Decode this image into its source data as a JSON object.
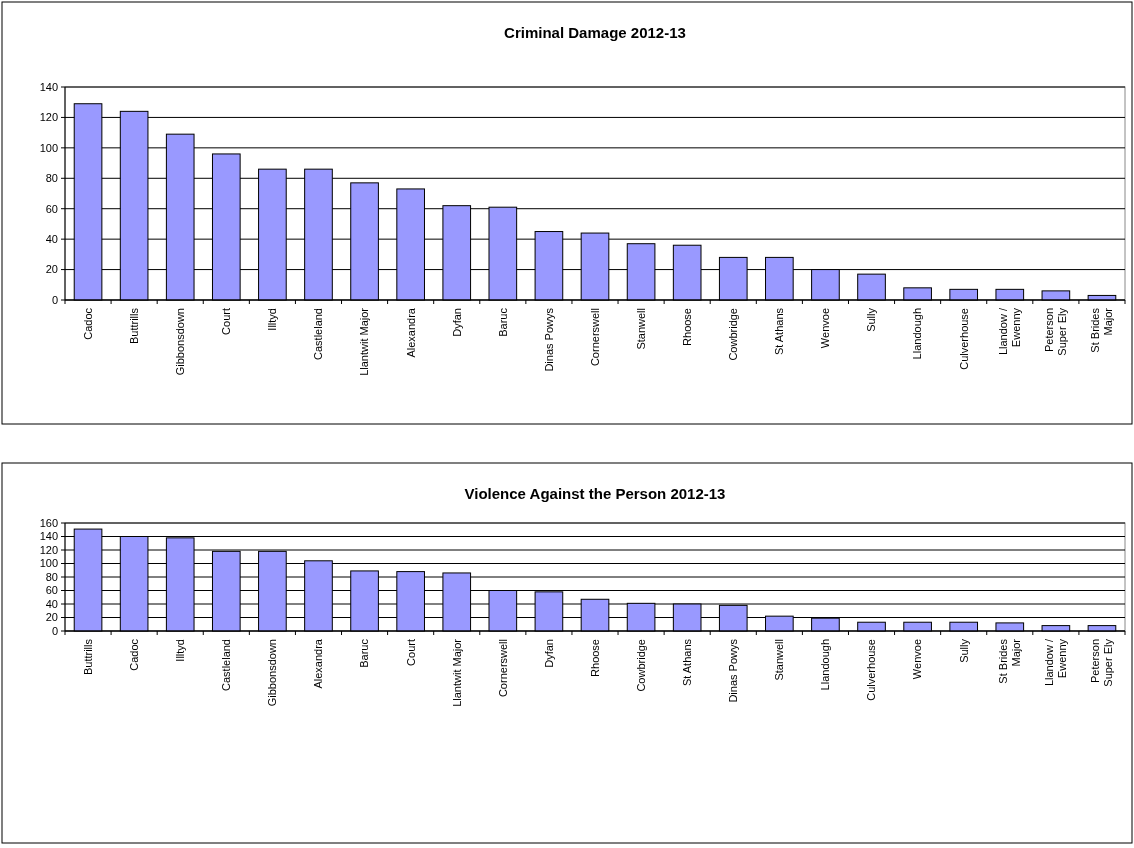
{
  "chart_data": [
    {
      "type": "bar",
      "title": "Criminal Damage 2012-13",
      "categories": [
        "Cadoc",
        "Buttrills",
        "Gibbonsdown",
        "Court",
        "Illtyd",
        "Castleland",
        "Llantwit Major",
        "Alexandra",
        "Dyfan",
        "Baruc",
        "Dinas Powys",
        "Cornerswell",
        "Stanwell",
        "Rhoose",
        "Cowbridge",
        "St Athans",
        "Wenvoe",
        "Sully",
        "Llandough",
        "Culverhouse",
        "Llandow / Ewenny",
        "Peterson Super Ely",
        "St Brides Major"
      ],
      "values": [
        129,
        124,
        109,
        96,
        86,
        86,
        77,
        73,
        62,
        61,
        45,
        44,
        37,
        36,
        28,
        28,
        20,
        17,
        8,
        7,
        7,
        6,
        3
      ],
      "color": "#9999ff",
      "ylim": [
        0,
        140
      ],
      "yticks": [
        0,
        20,
        40,
        60,
        80,
        100,
        120,
        140
      ],
      "grid": "y"
    },
    {
      "type": "bar",
      "title": "Violence Against the Person 2012-13",
      "categories": [
        "Buttrills",
        "Cadoc",
        "Illtyd",
        "Castleland",
        "Gibbonsdown",
        "Alexandra",
        "Baruc",
        "Court",
        "Llantwit Major",
        "Cornerswell",
        "Dyfan",
        "Rhoose",
        "Cowbridge",
        "St Athans",
        "Dinas Powys",
        "Stanwell",
        "Llandough",
        "Culverhouse",
        "Wenvoe",
        "Sully",
        "St Brides Major",
        "Llandow / Ewenny",
        "Peterson Super Ely"
      ],
      "values": [
        151,
        140,
        138,
        118,
        118,
        104,
        89,
        88,
        86,
        60,
        58,
        47,
        41,
        40,
        38,
        22,
        19,
        13,
        13,
        13,
        12,
        8,
        8
      ],
      "color": "#9999ff",
      "ylim": [
        0,
        160
      ],
      "yticks": [
        0,
        20,
        40,
        60,
        80,
        100,
        120,
        140,
        160
      ],
      "grid": "y"
    }
  ]
}
